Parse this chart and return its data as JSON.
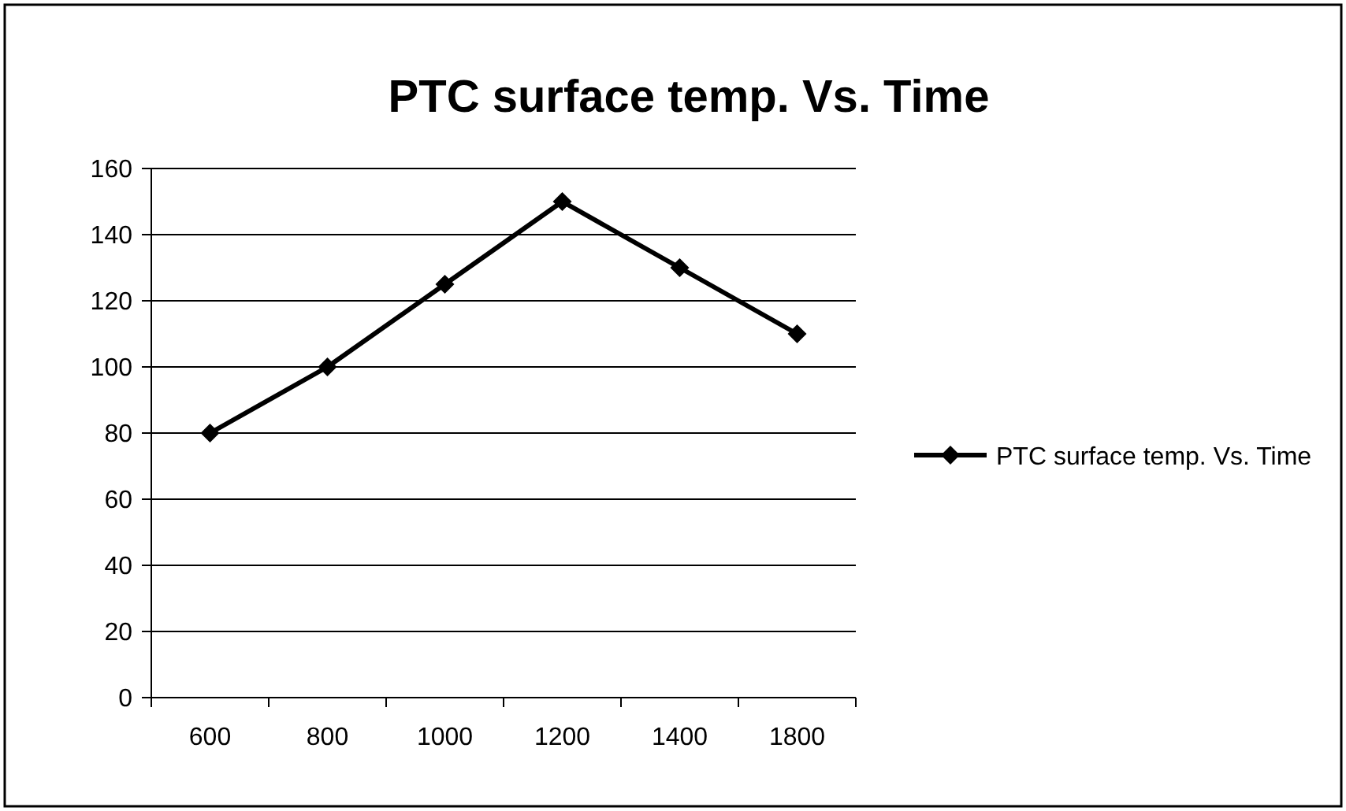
{
  "chart_data": {
    "type": "line",
    "title": "PTC surface temp. Vs. Time",
    "categories": [
      "600",
      "800",
      "1000",
      "1200",
      "1400",
      "1800"
    ],
    "series": [
      {
        "name": "PTC surface temp. Vs. Time",
        "color": "#000000",
        "values": [
          80,
          100,
          125,
          150,
          130,
          110
        ]
      }
    ],
    "ylim": [
      0,
      160
    ],
    "yticks": [
      0,
      20,
      40,
      60,
      80,
      100,
      120,
      140,
      160
    ],
    "grid": "y",
    "legend": "right",
    "marker": "diamond",
    "line_style": "solid"
  }
}
